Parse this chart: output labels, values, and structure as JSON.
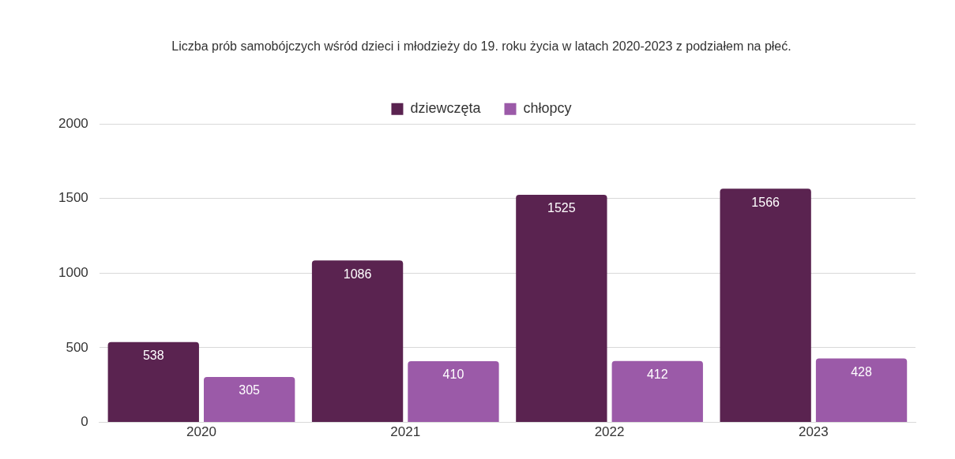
{
  "chart_data": {
    "type": "bar",
    "title": "Liczba prób samobójczych wśród dzieci i młodzieży do 19. roku życia w latach 2020-2023 z podziałem na płeć.",
    "categories": [
      "2020",
      "2021",
      "2022",
      "2023"
    ],
    "series": [
      {
        "name": "dziewczęta",
        "color": "#5a2350",
        "values": [
          538,
          1086,
          1525,
          1566
        ]
      },
      {
        "name": "chłopcy",
        "color": "#9b5aa8",
        "values": [
          305,
          410,
          412,
          428
        ]
      }
    ],
    "ylim": [
      0,
      2000
    ],
    "yticks": [
      0,
      500,
      1000,
      1500,
      2000
    ],
    "grid": "y",
    "legend": "top",
    "data_labels": true
  }
}
